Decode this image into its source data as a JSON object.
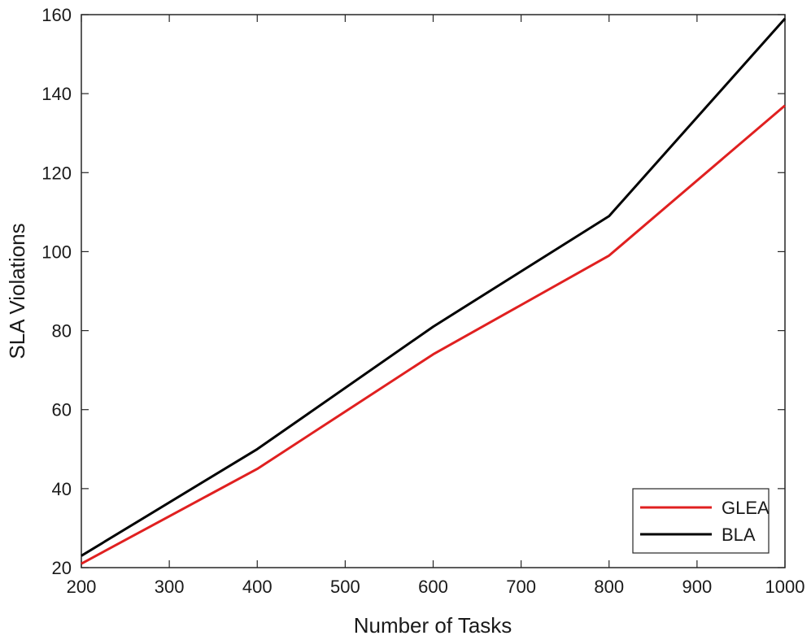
{
  "chart_data": {
    "type": "line",
    "title": "",
    "xlabel": "Number of Tasks",
    "ylabel": "SLA Violations",
    "xlim": [
      200,
      1000
    ],
    "ylim": [
      20,
      160
    ],
    "xticks": [
      200,
      300,
      400,
      500,
      600,
      700,
      800,
      900,
      1000
    ],
    "yticks": [
      20,
      40,
      60,
      80,
      100,
      120,
      140,
      160
    ],
    "x": [
      200,
      400,
      600,
      800,
      1000
    ],
    "series": [
      {
        "name": "GLEA",
        "color": "#e02020",
        "values": [
          21,
          45,
          74,
          99,
          137
        ]
      },
      {
        "name": "BLA",
        "color": "#000000",
        "values": [
          23,
          50,
          81,
          109,
          159
        ]
      }
    ],
    "grid": false,
    "legend": "bottom-right"
  }
}
